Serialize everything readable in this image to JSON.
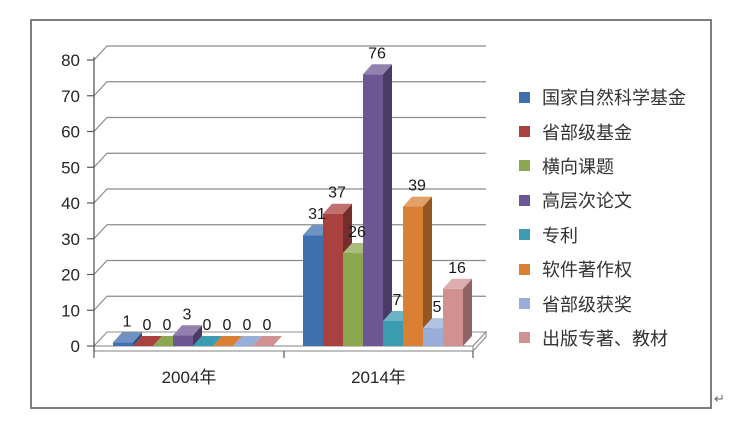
{
  "chart_data": {
    "type": "bar",
    "variant": "3d-clustered-column",
    "title": "",
    "categories": [
      "2004年",
      "2014年"
    ],
    "series": [
      {
        "name": "国家自然科学基金",
        "color": "#3E6FAF",
        "values": [
          1,
          31
        ]
      },
      {
        "name": "省部级基金",
        "color": "#A9423F",
        "values": [
          0,
          37
        ]
      },
      {
        "name": "横向课题",
        "color": "#8CA750",
        "values": [
          0,
          26
        ]
      },
      {
        "name": "高层次论文",
        "color": "#6D5694",
        "values": [
          3,
          76
        ]
      },
      {
        "name": "专利",
        "color": "#3B9BB1",
        "values": [
          0,
          7
        ]
      },
      {
        "name": "软件著作权",
        "color": "#D98034",
        "values": [
          0,
          39
        ]
      },
      {
        "name": "省部级获奖",
        "color": "#98AED8",
        "values": [
          0,
          5
        ]
      },
      {
        "name": "出版专著、教材",
        "color": "#D29191",
        "values": [
          0,
          16
        ]
      }
    ],
    "ylim": [
      0,
      80
    ],
    "ytick_step": 10,
    "yticks": [
      0,
      10,
      20,
      30,
      40,
      50,
      60,
      70,
      80
    ],
    "grid": true,
    "legend_position": "right",
    "data_labels": true
  },
  "page": {
    "paragraph_mark": "↵"
  },
  "colors": {
    "axis": "#595959",
    "grid": "#8C8C8C",
    "frame_border": "#7F7F7F",
    "text": "#262626"
  }
}
